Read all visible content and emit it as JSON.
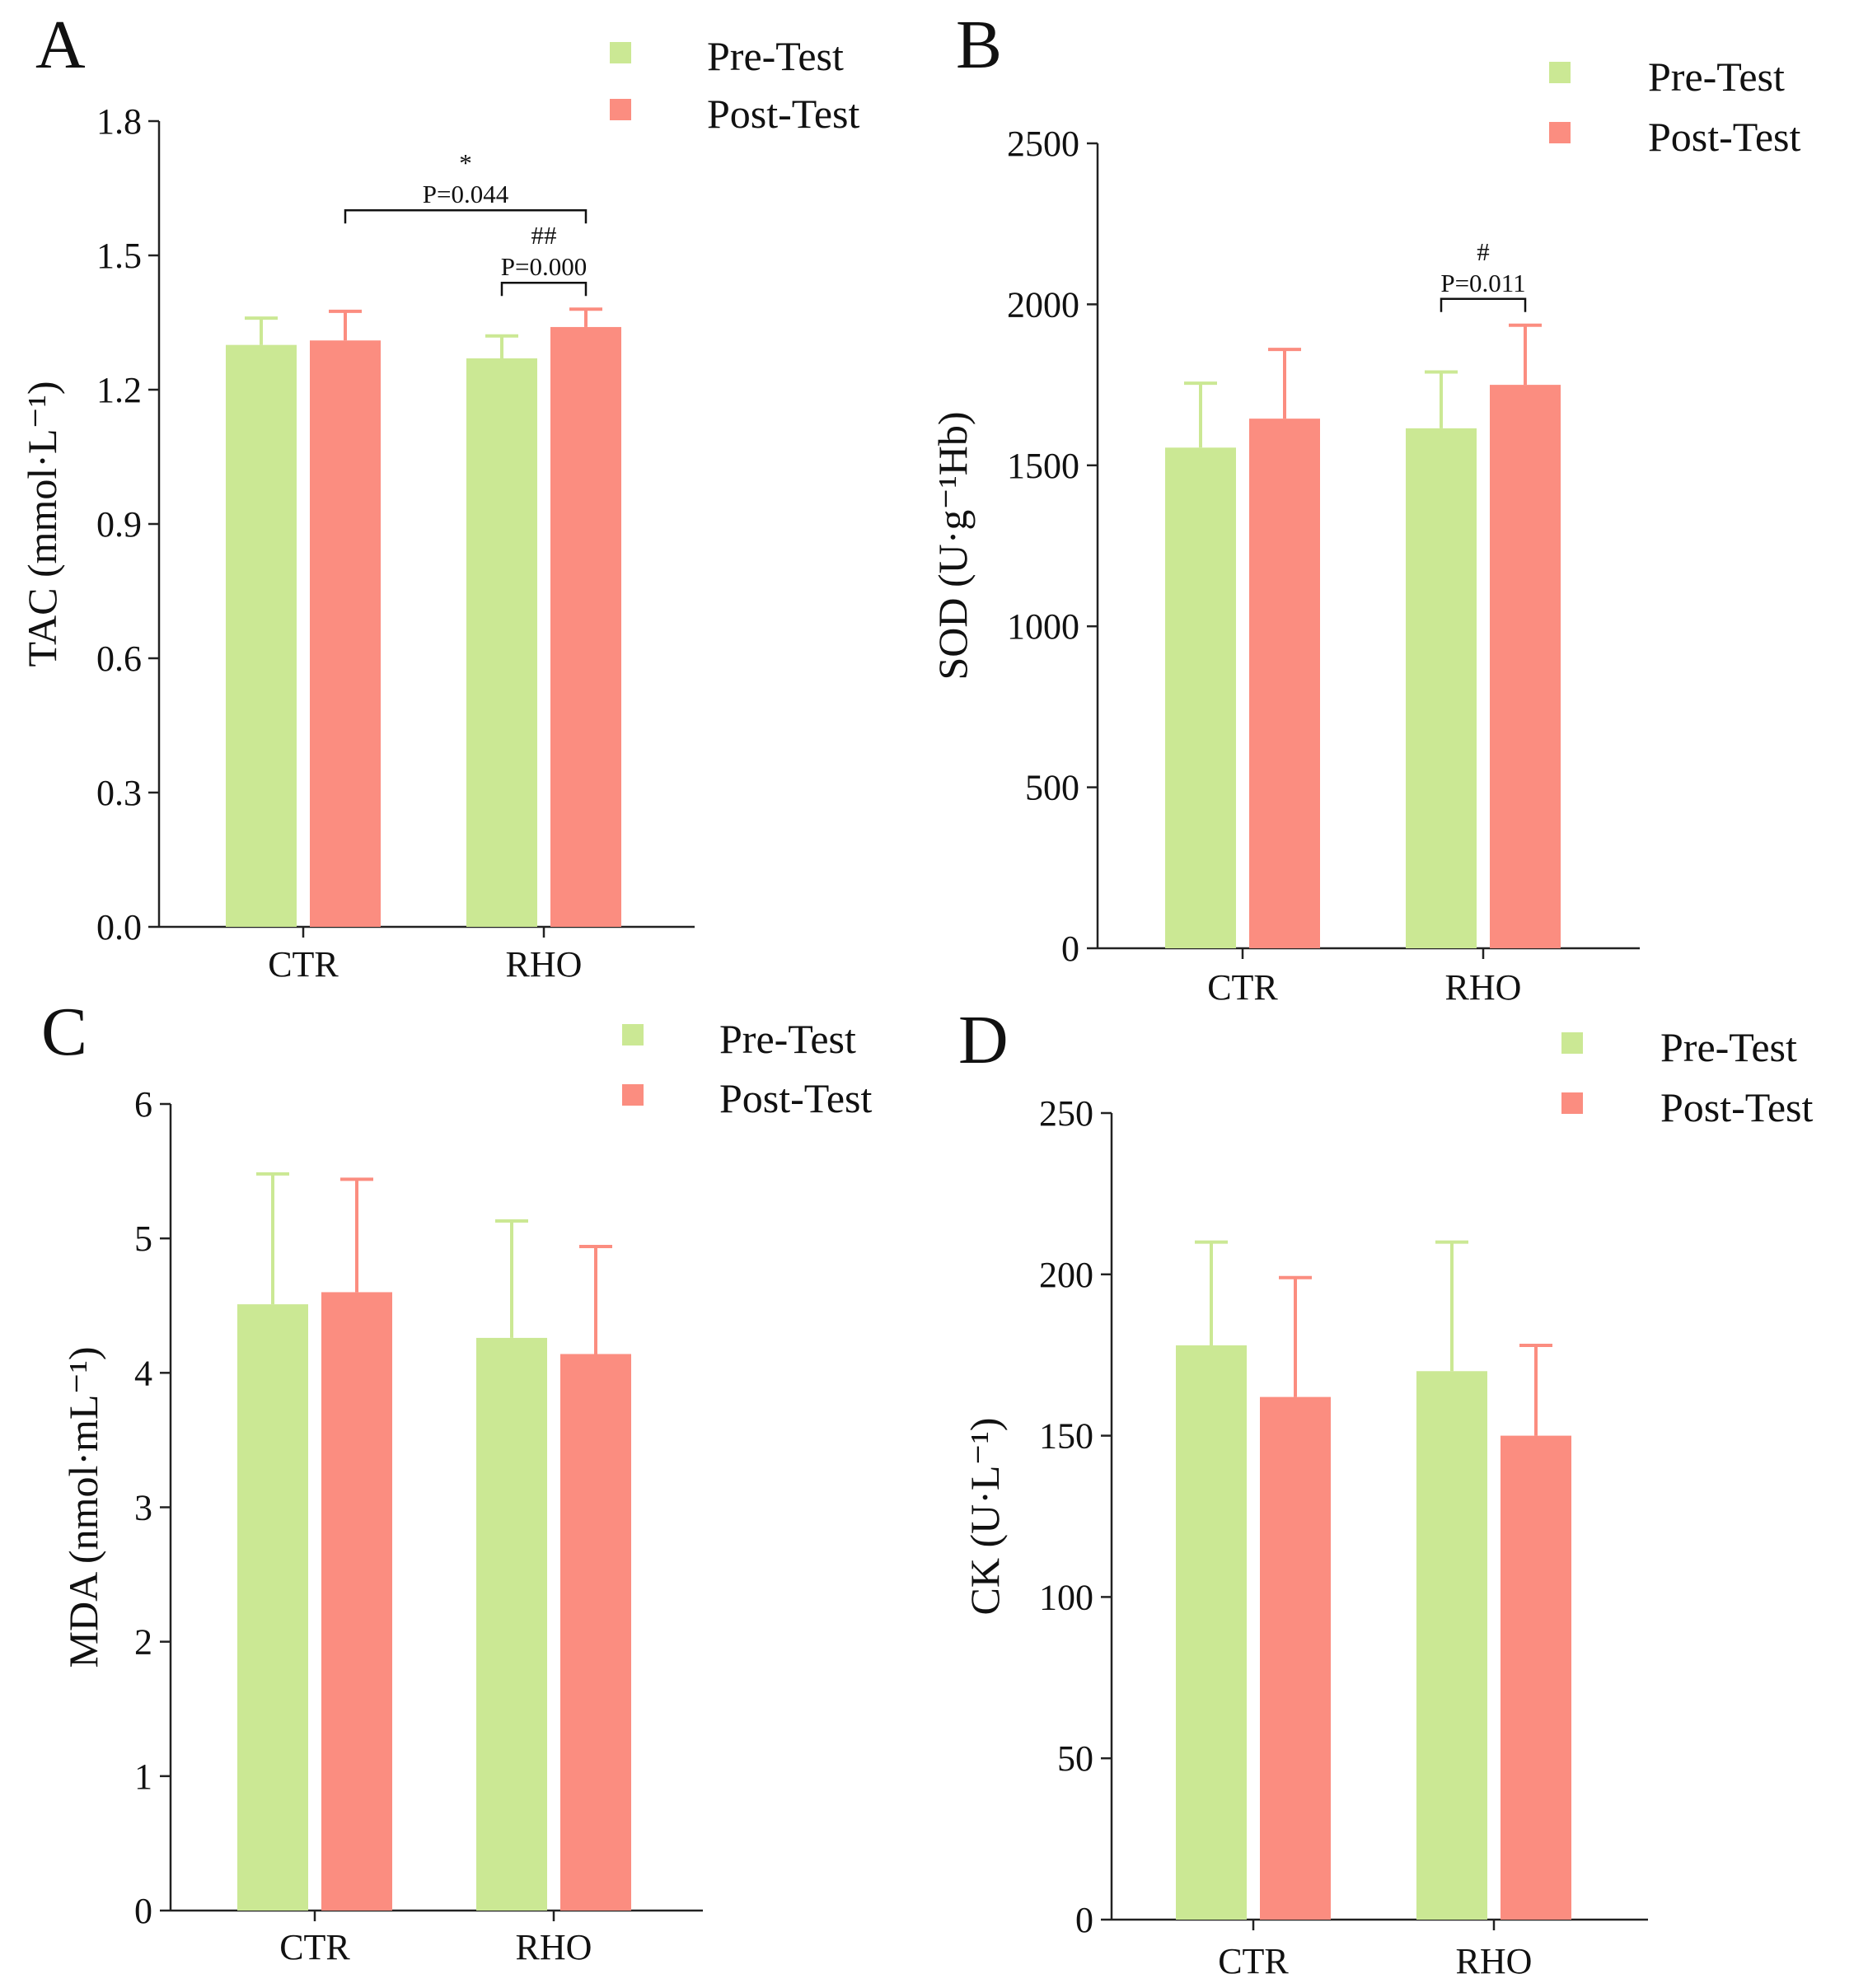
{
  "colors": {
    "pre": "#cbe894",
    "post": "#fb8d80"
  },
  "chart_data": [
    {
      "type": "bar",
      "panel_label": "A",
      "title": "",
      "xlabel": "",
      "ylabel": "TAC (mmol·L⁻¹)",
      "categories": [
        "CTR",
        "RHO"
      ],
      "ylim": [
        0,
        1.8
      ],
      "yticks": [
        "0.0",
        "0.3",
        "0.6",
        "0.9",
        "1.2",
        "1.5",
        "1.8"
      ],
      "legend": [
        "Pre-Test",
        "Post-Test"
      ],
      "series": [
        {
          "name": "Pre-Test",
          "color": "#cbe894",
          "values": [
            1.3,
            1.27
          ],
          "errors": [
            0.06,
            0.05
          ]
        },
        {
          "name": "Post-Test",
          "color": "#fb8d80",
          "values": [
            1.31,
            1.34
          ],
          "errors": [
            0.065,
            0.04
          ]
        }
      ],
      "annotations": [
        {
          "symbol": "*",
          "text": "P=0.044",
          "from": "CTR:Post-Test",
          "to": "RHO:Post-Test"
        },
        {
          "symbol": "##",
          "text": "P=0.000",
          "from": "RHO:Pre-Test",
          "to": "RHO:Post-Test"
        }
      ]
    },
    {
      "type": "bar",
      "panel_label": "B",
      "title": "",
      "xlabel": "",
      "ylabel": "SOD (U·g⁻¹Hb)",
      "categories": [
        "CTR",
        "RHO"
      ],
      "ylim": [
        0,
        2500
      ],
      "yticks": [
        "0",
        "500",
        "1000",
        "1500",
        "2000",
        "2500"
      ],
      "legend": [
        "Pre-Test",
        "Post-Test"
      ],
      "series": [
        {
          "name": "Pre-Test",
          "color": "#cbe894",
          "values": [
            1555,
            1615
          ],
          "errors": [
            200,
            175
          ]
        },
        {
          "name": "Post-Test",
          "color": "#fb8d80",
          "values": [
            1645,
            1750
          ],
          "errors": [
            215,
            185
          ]
        }
      ],
      "annotations": [
        {
          "symbol": "#",
          "text": "P=0.011",
          "from": "RHO:Pre-Test",
          "to": "RHO:Post-Test"
        }
      ]
    },
    {
      "type": "bar",
      "panel_label": "C",
      "title": "",
      "xlabel": "",
      "ylabel": "MDA (nmol·mL⁻¹)",
      "categories": [
        "CTR",
        "RHO"
      ],
      "ylim": [
        0,
        6
      ],
      "yticks": [
        "0",
        "1",
        "2",
        "3",
        "4",
        "5",
        "6"
      ],
      "legend": [
        "Pre-Test",
        "Post-Test"
      ],
      "series": [
        {
          "name": "Pre-Test",
          "color": "#cbe894",
          "values": [
            4.51,
            4.26
          ],
          "errors": [
            0.97,
            0.87
          ]
        },
        {
          "name": "Post-Test",
          "color": "#fb8d80",
          "values": [
            4.6,
            4.14
          ],
          "errors": [
            0.84,
            0.8
          ]
        }
      ],
      "annotations": []
    },
    {
      "type": "bar",
      "panel_label": "D",
      "title": "",
      "xlabel": "",
      "ylabel": "CK (U·L⁻¹)",
      "categories": [
        "CTR",
        "RHO"
      ],
      "ylim": [
        0,
        250
      ],
      "yticks": [
        "0",
        "50",
        "100",
        "150",
        "200",
        "250"
      ],
      "legend": [
        "Pre-Test",
        "Post-Test"
      ],
      "series": [
        {
          "name": "Pre-Test",
          "color": "#cbe894",
          "values": [
            178,
            170
          ],
          "errors": [
            32,
            40
          ]
        },
        {
          "name": "Post-Test",
          "color": "#fb8d80",
          "values": [
            162,
            150
          ],
          "errors": [
            37,
            28
          ]
        }
      ],
      "annotations": []
    }
  ]
}
